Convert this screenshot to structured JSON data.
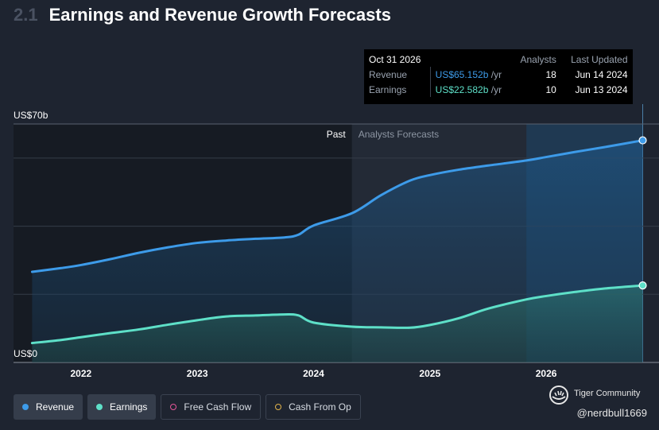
{
  "header": {
    "section_number": "2.1",
    "title": "Earnings and Revenue Growth Forecasts"
  },
  "tooltip": {
    "date": "Oct 31 2026",
    "col_analysts": "Analysts",
    "col_updated": "Last Updated",
    "rows": [
      {
        "label": "Revenue",
        "value": "US$65.152b",
        "unit": "/yr",
        "analysts": "18",
        "updated": "Jun 14 2024"
      },
      {
        "label": "Earnings",
        "value": "US$22.582b",
        "unit": "/yr",
        "analysts": "10",
        "updated": "Jun 13 2024"
      }
    ]
  },
  "chart_data": {
    "type": "area",
    "title": "Earnings and Revenue Growth Forecasts",
    "x_unit": "year",
    "xlim": [
      2021.42,
      2026.97
    ],
    "ylim": [
      0,
      70
    ],
    "y_tick_labels": {
      "top": "US$70b",
      "bottom": "US$0"
    },
    "x_ticks": [
      2022,
      2023,
      2024,
      2025,
      2026
    ],
    "x_tick_labels": [
      "2022",
      "2023",
      "2024",
      "2025",
      "2026"
    ],
    "past_label": "Past",
    "forecast_label": "Analysts Forecasts",
    "forecast_start": 2024.33,
    "highlight_start": 2025.83,
    "gridlines": true,
    "series": [
      {
        "name": "Revenue",
        "color": "#3d9be9",
        "x": [
          2021.58,
          2021.83,
          2022.0,
          2022.25,
          2022.5,
          2022.75,
          2023.0,
          2023.25,
          2023.5,
          2023.75,
          2023.87,
          2024.0,
          2024.33,
          2024.58,
          2024.83,
          2025.0,
          2025.25,
          2025.5,
          2025.83,
          2026.0,
          2026.25,
          2026.5,
          2026.83
        ],
        "values": [
          26.6,
          27.7,
          28.6,
          30.3,
          32.2,
          33.8,
          35.1,
          35.8,
          36.3,
          36.7,
          37.5,
          40.2,
          43.8,
          49.1,
          53.4,
          55.0,
          56.6,
          57.8,
          59.3,
          60.3,
          61.8,
          63.2,
          65.2
        ]
      },
      {
        "name": "Earnings",
        "color": "#5ee0c8",
        "x": [
          2021.58,
          2021.83,
          2022.0,
          2022.25,
          2022.5,
          2022.75,
          2023.0,
          2023.25,
          2023.5,
          2023.75,
          2023.87,
          2024.0,
          2024.33,
          2024.58,
          2024.83,
          2025.0,
          2025.25,
          2025.5,
          2025.83,
          2026.0,
          2026.25,
          2026.5,
          2026.83
        ],
        "values": [
          5.7,
          6.6,
          7.4,
          8.6,
          9.7,
          11.1,
          12.4,
          13.5,
          13.8,
          14.1,
          13.8,
          11.7,
          10.5,
          10.3,
          10.2,
          11.0,
          13.0,
          15.8,
          18.5,
          19.5,
          20.7,
          21.7,
          22.6
        ]
      }
    ]
  },
  "legend": [
    {
      "label": "Revenue",
      "color": "#3d9be9",
      "active": true
    },
    {
      "label": "Earnings",
      "color": "#5ee0c8",
      "active": true
    },
    {
      "label": "Free Cash Flow",
      "color": "#e6569a",
      "active": false
    },
    {
      "label": "Cash From Op",
      "color": "#e2b34a",
      "active": false
    }
  ],
  "watermark": {
    "brand": "Tiger Community",
    "handle": "@nerdbull1669"
  }
}
